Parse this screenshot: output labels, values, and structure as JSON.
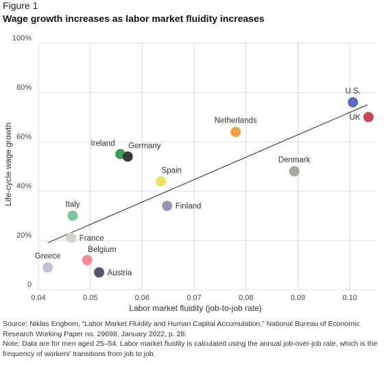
{
  "figure_label": "Figure 1",
  "title": "Wage growth increases as labor market fluidity increases",
  "chart_data": {
    "type": "scatter",
    "title": "Wage growth increases as labor market fluidity increases",
    "xlabel": "Labor market fluidity (job-to-job rate)",
    "ylabel": "Life-cycle wage growth",
    "xlim": [
      0.04,
      0.105
    ],
    "ylim": [
      0,
      100
    ],
    "x_ticks": [
      0.04,
      0.05,
      0.06,
      0.07,
      0.08,
      0.09,
      0.1
    ],
    "x_tick_labels": [
      "0.04",
      "0.05",
      "0.06",
      "0.07",
      "0.08",
      "0.09",
      "0.10"
    ],
    "y_ticks": [
      0,
      20,
      40,
      60,
      80,
      100
    ],
    "y_tick_labels": [
      "0",
      "20%",
      "40%",
      "60%",
      "80%",
      "100%"
    ],
    "grid": "vertical and horizontal",
    "points": [
      {
        "label": "Greece",
        "x": 0.0418,
        "y": 9,
        "color": "#c4bfd8",
        "label_pos": "above"
      },
      {
        "label": "Italy",
        "x": 0.0466,
        "y": 30,
        "color": "#7cc49a",
        "label_pos": "above"
      },
      {
        "label": "France",
        "x": 0.0463,
        "y": 21,
        "color": "#d6d2cc",
        "label_pos": "right"
      },
      {
        "label": "Belgium",
        "x": 0.0494,
        "y": 12,
        "color": "#f28a9a",
        "label_pos": "above-right"
      },
      {
        "label": "Austria",
        "x": 0.0517,
        "y": 7,
        "color": "#5a5566",
        "label_pos": "right"
      },
      {
        "label": "Ireland",
        "x": 0.0558,
        "y": 55,
        "color": "#3aa05a",
        "label_pos": "above-left"
      },
      {
        "label": "Germany",
        "x": 0.0572,
        "y": 54,
        "color": "#3a3a3a",
        "label_pos": "above-right"
      },
      {
        "label": "Spain",
        "x": 0.0636,
        "y": 44,
        "color": "#f0e05a",
        "label_pos": "above-right"
      },
      {
        "label": "Finland",
        "x": 0.0648,
        "y": 34,
        "color": "#9a96b4",
        "label_pos": "right"
      },
      {
        "label": "Netherlands",
        "x": 0.078,
        "y": 64,
        "color": "#f0a040",
        "label_pos": "above"
      },
      {
        "label": "Denmark",
        "x": 0.0893,
        "y": 48,
        "color": "#a8a49e",
        "label_pos": "above"
      },
      {
        "label": "U.S.",
        "x": 0.1006,
        "y": 76,
        "color": "#5a6ec8",
        "label_pos": "above"
      },
      {
        "label": "UK",
        "x": 0.1036,
        "y": 70,
        "color": "#c84a5a",
        "label_pos": "left"
      }
    ],
    "trend_line": {
      "x": [
        0.0418,
        0.1034
      ],
      "y": [
        19,
        75
      ]
    }
  },
  "footer": {
    "source": "Source: Niklas Engbom, “Labor Market Fluidity and Human Capital Accumulation,” National Bureau of Economic Research Working Paper no. 29698, January 2022, p. 28.",
    "note": "Note: Data are for men aged 25–54. Labor market fluidity is calculated using the annual job-over-job rate, which is the frequency of workers’ transitions from job to job."
  }
}
